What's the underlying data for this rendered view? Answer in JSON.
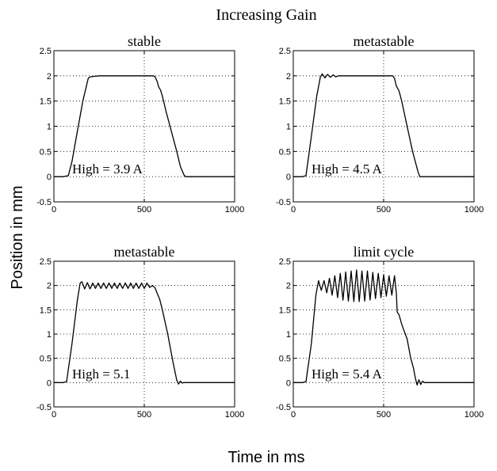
{
  "figure": {
    "title": "Increasing Gain",
    "ylabel": "Position in mm",
    "xlabel": "Time in ms"
  },
  "chart_data": [
    {
      "type": "line",
      "title": "stable",
      "annotation": "High = 3.9 A",
      "xlim": [
        0,
        1000
      ],
      "ylim": [
        -0.5,
        2.5
      ],
      "xticks": [
        0,
        500,
        1000
      ],
      "yticks": [
        -0.5,
        0,
        0.5,
        1,
        1.5,
        2,
        2.5
      ],
      "grid": true,
      "series": [
        {
          "x": [
            0,
            50,
            80,
            100,
            130,
            160,
            190,
            200,
            220,
            250,
            300,
            400,
            500,
            550,
            560,
            570,
            580,
            590,
            600,
            620,
            650,
            680,
            700,
            720,
            730,
            750,
            800,
            900,
            1000
          ],
          "y": [
            0,
            0,
            0.02,
            0.3,
            0.9,
            1.5,
            1.95,
            1.98,
            1.99,
            2.0,
            2.0,
            2.0,
            2.0,
            2.0,
            1.98,
            1.9,
            1.78,
            1.72,
            1.6,
            1.3,
            0.9,
            0.5,
            0.2,
            0.03,
            0.0,
            0,
            0,
            0,
            0
          ]
        }
      ]
    },
    {
      "type": "line",
      "title": "metastable",
      "annotation": "High = 4.5 A",
      "xlim": [
        0,
        1000
      ],
      "ylim": [
        -0.5,
        2.5
      ],
      "xticks": [
        0,
        500,
        1000
      ],
      "yticks": [
        -0.5,
        0,
        0.5,
        1,
        1.5,
        2,
        2.5
      ],
      "grid": true,
      "series": [
        {
          "x": [
            0,
            50,
            70,
            100,
            130,
            150,
            160,
            175,
            190,
            205,
            220,
            235,
            250,
            300,
            400,
            500,
            550,
            560,
            570,
            585,
            600,
            630,
            660,
            690,
            700,
            720,
            800,
            900,
            1000
          ],
          "y": [
            0,
            0,
            0.02,
            0.8,
            1.6,
            1.98,
            2.04,
            1.96,
            2.03,
            1.97,
            2.02,
            1.98,
            2.0,
            2.0,
            2.0,
            2.0,
            2.0,
            1.95,
            1.8,
            1.7,
            1.5,
            1.0,
            0.5,
            0.1,
            0.0,
            0,
            0,
            0,
            0
          ]
        }
      ]
    },
    {
      "type": "line",
      "title": "metastable",
      "annotation": "High = 5.1",
      "xlim": [
        0,
        1000
      ],
      "ylim": [
        -0.5,
        2.5
      ],
      "xticks": [
        0,
        500,
        1000
      ],
      "yticks": [
        -0.5,
        0,
        0.5,
        1,
        1.5,
        2,
        2.5
      ],
      "grid": true,
      "series": [
        {
          "x": [
            0,
            50,
            70,
            100,
            130,
            145,
            155,
            170,
            185,
            200,
            215,
            230,
            245,
            260,
            275,
            290,
            305,
            320,
            335,
            350,
            365,
            380,
            395,
            410,
            425,
            440,
            455,
            470,
            485,
            500,
            515,
            530,
            545,
            560,
            570,
            585,
            600,
            630,
            660,
            680,
            690,
            700,
            710,
            720,
            800,
            900,
            1000
          ],
          "y": [
            0,
            0,
            0.02,
            0.8,
            1.7,
            2.05,
            2.08,
            1.93,
            2.06,
            1.93,
            2.05,
            1.94,
            2.05,
            1.94,
            2.05,
            1.94,
            2.05,
            1.94,
            2.05,
            1.94,
            2.05,
            1.94,
            2.05,
            1.94,
            2.05,
            1.94,
            2.05,
            1.94,
            2.05,
            1.94,
            2.05,
            1.96,
            2.0,
            1.95,
            1.85,
            1.72,
            1.5,
            1.0,
            0.4,
            0.05,
            -0.03,
            0.03,
            -0.01,
            0,
            0,
            0,
            0
          ]
        }
      ]
    },
    {
      "type": "line",
      "title": "limit cycle",
      "annotation": "High = 5.4 A",
      "xlim": [
        0,
        1000
      ],
      "ylim": [
        -0.5,
        2.5
      ],
      "xticks": [
        0,
        500,
        1000
      ],
      "yticks": [
        -0.5,
        0,
        0.5,
        1,
        1.5,
        2,
        2.5
      ],
      "grid": true,
      "series": [
        {
          "x": [
            0,
            50,
            70,
            100,
            125,
            140,
            155,
            170,
            185,
            200,
            215,
            230,
            245,
            260,
            275,
            290,
            305,
            320,
            335,
            350,
            365,
            380,
            395,
            410,
            425,
            440,
            455,
            470,
            485,
            500,
            515,
            530,
            545,
            560,
            570,
            575,
            585,
            600,
            630,
            650,
            665,
            675,
            685,
            695,
            705,
            715,
            725,
            800,
            900,
            1000
          ],
          "y": [
            0,
            0,
            0.02,
            0.8,
            1.8,
            2.1,
            1.9,
            2.1,
            1.85,
            2.15,
            1.8,
            2.2,
            1.75,
            2.25,
            1.7,
            2.28,
            1.68,
            2.3,
            1.67,
            2.32,
            1.67,
            2.3,
            1.68,
            2.3,
            1.7,
            2.27,
            1.73,
            2.25,
            1.75,
            2.22,
            1.78,
            2.2,
            1.8,
            2.2,
            1.85,
            1.45,
            1.4,
            1.2,
            0.9,
            0.5,
            0.3,
            0.1,
            -0.05,
            0.06,
            -0.04,
            0.03,
            0.0,
            0,
            0,
            0
          ]
        }
      ]
    }
  ]
}
